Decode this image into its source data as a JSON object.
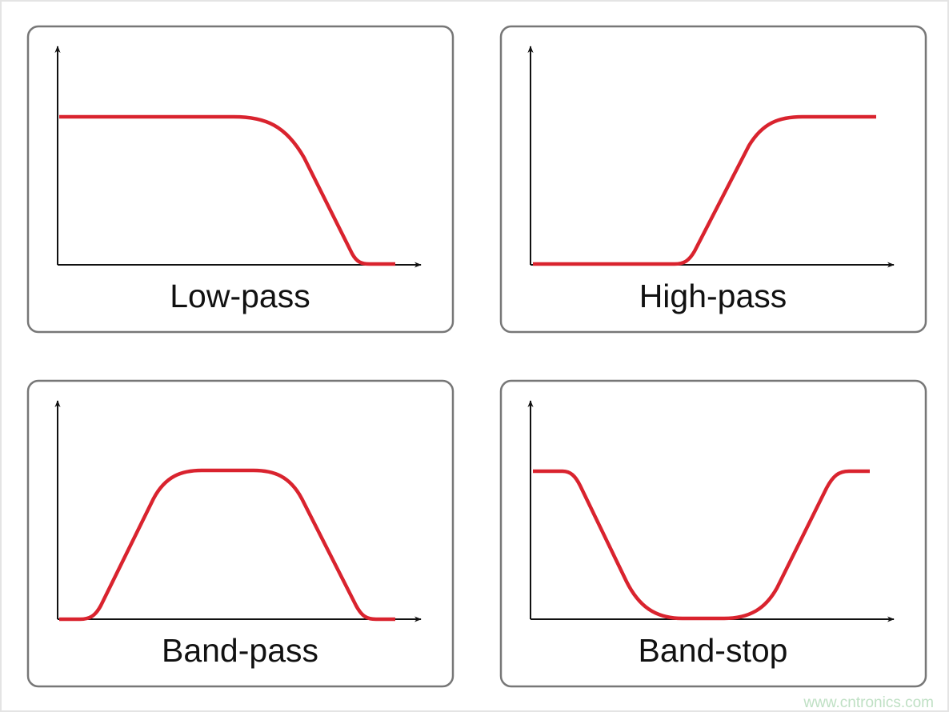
{
  "panels": [
    {
      "id": "low-pass",
      "label": "Low-pass"
    },
    {
      "id": "high-pass",
      "label": "High-pass"
    },
    {
      "id": "band-pass",
      "label": "Band-pass"
    },
    {
      "id": "band-stop",
      "label": "Band-stop"
    }
  ],
  "colors": {
    "curve": "#d9232e",
    "axis": "#111111",
    "frame": "#777777"
  },
  "watermark": "www.cntronics.com"
}
